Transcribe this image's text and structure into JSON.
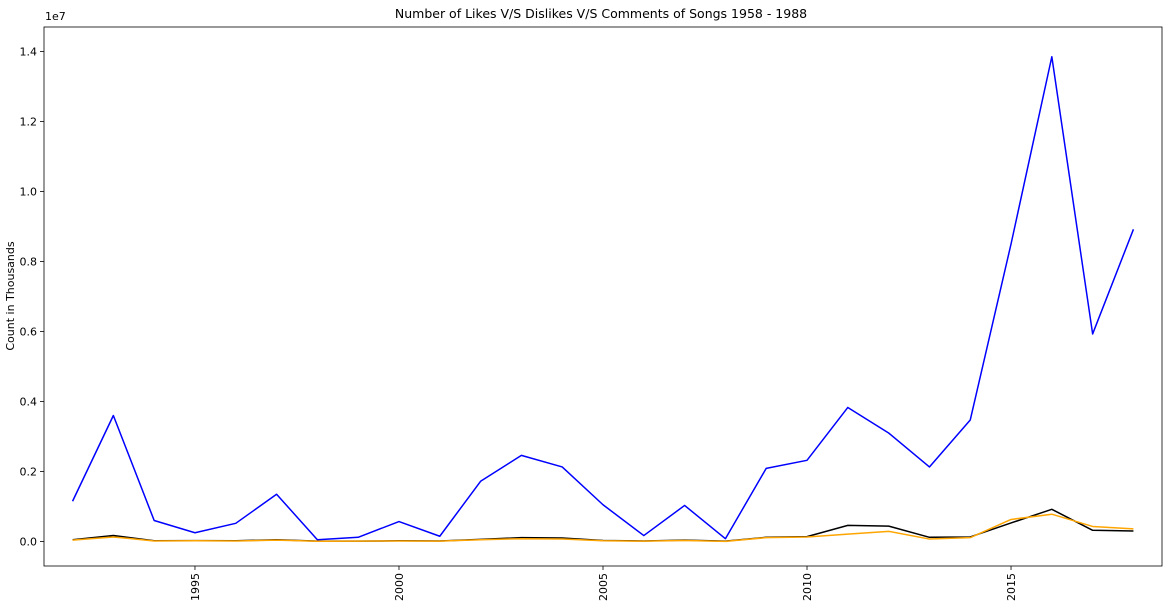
{
  "chart_data": {
    "type": "line",
    "title": "Number of Likes V/S Dislikes V/S Comments of Songs 1958 - 1988",
    "xlabel": "",
    "ylabel": "Count in Thousands",
    "y_offset_text": "1e7",
    "xlim": [
      1991.3,
      2018.7
    ],
    "ylim": [
      -700000,
      14700000
    ],
    "x_ticks": [
      1995,
      2000,
      2005,
      2010,
      2015
    ],
    "x_tick_labels": [
      "1995",
      "2000",
      "2005",
      "2010",
      "2015"
    ],
    "y_ticks": [
      0,
      2000000,
      4000000,
      6000000,
      8000000,
      10000000,
      12000000,
      14000000
    ],
    "y_tick_labels": [
      "0.0",
      "0.2",
      "0.4",
      "0.6",
      "0.8",
      "1.0",
      "1.2",
      "1.4"
    ],
    "grid": false,
    "legend": "none",
    "x": [
      1992,
      1993,
      1994,
      1995,
      1996,
      1997,
      1998,
      1999,
      2000,
      2001,
      2002,
      2003,
      2004,
      2005,
      2006,
      2007,
      2008,
      2009,
      2010,
      2011,
      2012,
      2013,
      2014,
      2015,
      2016,
      2017,
      2018
    ],
    "series": [
      {
        "color": "#0000ff",
        "values": [
          1150000,
          3600000,
          600000,
          250000,
          520000,
          1350000,
          50000,
          120000,
          570000,
          150000,
          1720000,
          2460000,
          2130000,
          1050000,
          170000,
          1030000,
          80000,
          2090000,
          2320000,
          3830000,
          3100000,
          2130000,
          3470000,
          8500000,
          13850000,
          5930000,
          8920000
        ]
      },
      {
        "color": "#000000",
        "values": [
          50000,
          170000,
          20000,
          25000,
          20000,
          50000,
          10000,
          10000,
          20000,
          15000,
          60000,
          110000,
          100000,
          30000,
          15000,
          40000,
          10000,
          120000,
          140000,
          460000,
          440000,
          120000,
          130000,
          530000,
          920000,
          320000,
          300000
        ]
      },
      {
        "color": "#ffa500",
        "values": [
          40000,
          130000,
          15000,
          20000,
          15000,
          40000,
          8000,
          10000,
          15000,
          10000,
          50000,
          80000,
          70000,
          20000,
          10000,
          30000,
          5000,
          110000,
          130000,
          210000,
          290000,
          70000,
          110000,
          630000,
          780000,
          430000,
          360000
        ]
      }
    ]
  }
}
